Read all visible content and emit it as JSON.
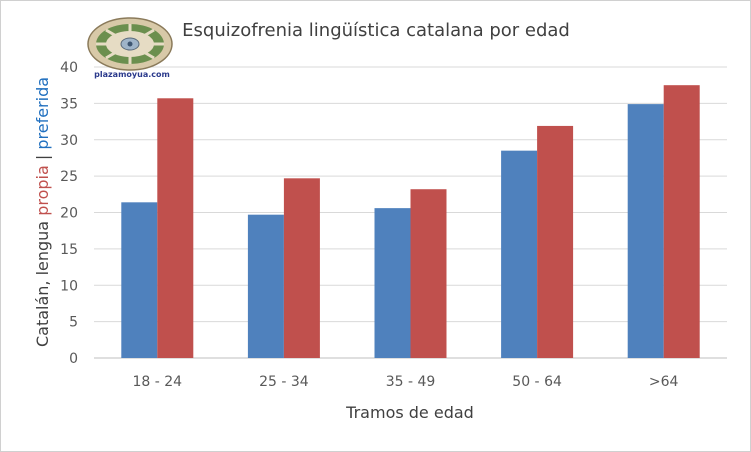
{
  "logo": {
    "text": "plazamoyua.com",
    "icon": "plazamoyua-seal-icon"
  },
  "chart_data": {
    "type": "bar",
    "title": "Esquizofrenia lingüística catalana por edad",
    "xlabel": "Tramos de edad",
    "ylabel_parts": [
      {
        "text": "Catalán, lengua ",
        "color": "#404040"
      },
      {
        "text": "propia",
        "color": "#c0504d"
      },
      {
        "text": " | ",
        "color": "#404040"
      },
      {
        "text": "preferida",
        "color": "#1f6fbf"
      }
    ],
    "categories": [
      "18 - 24",
      "25 - 34",
      "35 - 49",
      "50 - 64",
      ">64"
    ],
    "series": [
      {
        "values": [
          21.4,
          19.7,
          20.6,
          28.5,
          34.9
        ],
        "color": "#4f81bd"
      },
      {
        "values": [
          35.7,
          24.7,
          23.2,
          31.9,
          37.5
        ],
        "color": "#c0504d"
      }
    ],
    "ylim": [
      0,
      40
    ],
    "yticks": [
      0,
      5,
      10,
      15,
      20,
      25,
      30,
      35,
      40
    ],
    "grid": true,
    "legend": "none"
  }
}
